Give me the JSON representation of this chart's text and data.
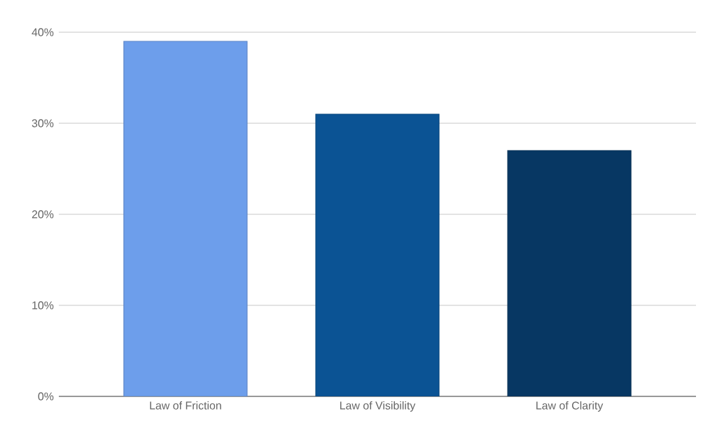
{
  "chart_data": {
    "type": "bar",
    "categories": [
      "Law of Friction",
      "Law of Visibility",
      "Law of Clarity"
    ],
    "values": [
      39,
      31,
      27
    ],
    "colors": [
      "#6d9eeb",
      "#0b5394",
      "#073763"
    ],
    "ylim": [
      0,
      40
    ],
    "yticks": [
      {
        "value": 0,
        "label": "0%"
      },
      {
        "value": 10,
        "label": "10%"
      },
      {
        "value": 20,
        "label": "20%"
      },
      {
        "value": 30,
        "label": "30%"
      },
      {
        "value": 40,
        "label": "40%"
      }
    ],
    "grid": "y"
  }
}
